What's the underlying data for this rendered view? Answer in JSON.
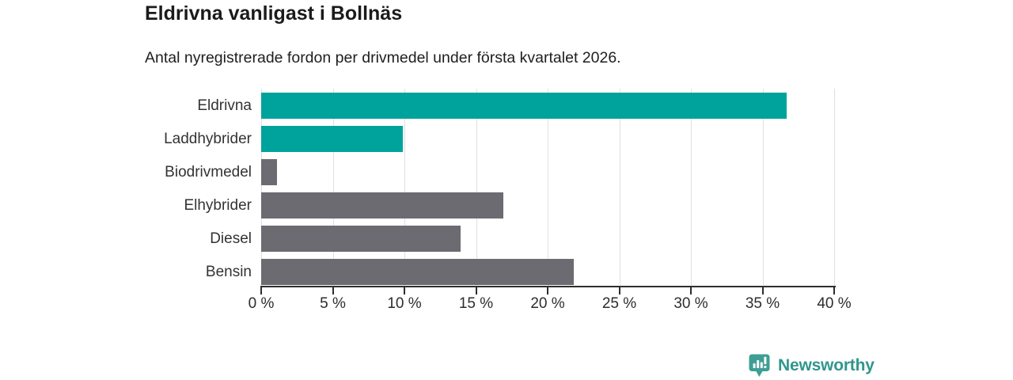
{
  "header": {
    "title": "Eldrivna vanligast i Bollnäs",
    "subtitle": "Antal nyregistrerade fordon per drivmedel under första kvartalet 2026."
  },
  "chart_data": {
    "type": "bar",
    "orientation": "horizontal",
    "title": "Eldrivna vanligast i Bollnäs",
    "subtitle": "Antal nyregistrerade fordon per drivmedel under första kvartalet 2026.",
    "categories": [
      "Eldrivna",
      "Laddhybrider",
      "Biodrivmedel",
      "Elhybrider",
      "Diesel",
      "Bensin"
    ],
    "values": [
      36.7,
      9.9,
      1.1,
      16.9,
      13.9,
      21.8
    ],
    "unit": "%",
    "bar_colors": [
      "#00a39b",
      "#00a39b",
      "#6b6b71",
      "#6b6b71",
      "#6b6b71",
      "#6b6b71"
    ],
    "xlim": [
      0,
      40
    ],
    "x_tick_values": [
      0,
      5,
      10,
      15,
      20,
      25,
      30,
      35,
      40
    ],
    "x_tick_labels": [
      "0 %",
      "5 %",
      "10 %",
      "15 %",
      "20 %",
      "25 %",
      "30 %",
      "35 %",
      "40 %"
    ],
    "grid": true,
    "legend": "none",
    "accent_color": "#00a39b",
    "neutral_color": "#6b6b71",
    "gridline_color": "#e0e0e0",
    "axis_color": "#2e2e2e"
  },
  "footer": {
    "brand": "Newsworthy",
    "brand_color": "#31968c",
    "badge_color": "#3f9e93"
  }
}
